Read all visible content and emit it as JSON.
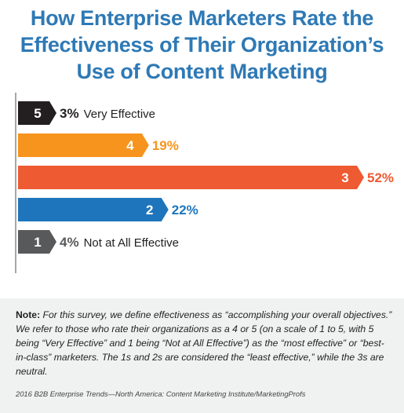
{
  "chart_data": {
    "type": "bar",
    "orientation": "horizontal",
    "title": "How Enterprise Marketers Rate the Effectiveness of Their Organization’s Use of Content Marketing",
    "categories": [
      "5",
      "4",
      "3",
      "2",
      "1"
    ],
    "values": [
      3,
      19,
      52,
      22,
      4
    ],
    "value_labels": [
      "3%",
      "19%",
      "52%",
      "22%",
      "4%"
    ],
    "category_descriptions": [
      "Very Effective",
      "",
      "",
      "",
      "Not at All Effective"
    ],
    "colors": [
      "#231f20",
      "#f7941d",
      "#ee5a31",
      "#1f75bc",
      "#58595b"
    ],
    "xlim": [
      0,
      52
    ],
    "grid": false,
    "legend": "none"
  },
  "title_lines": [
    "How Enterprise Marketers Rate the",
    "Effectiveness of Their Organization’s",
    "Use of Content Marketing"
  ],
  "note": {
    "label": "Note:",
    "text": "For this survey, we define effectiveness as “accomplishing your overall objectives.” We refer to those who rate their organizations as a 4 or 5 (on a scale of 1 to 5, with 5 being “Very Effective” and 1 being “Not at All Effective”) as the “most effective” or “best-in-class” marketers. The 1s and 2s are considered the “least effective,” while the 3s are neutral."
  },
  "source": "2016 B2B Enterprise Trends—North America: Content Marketing Institute/MarketingProfs"
}
